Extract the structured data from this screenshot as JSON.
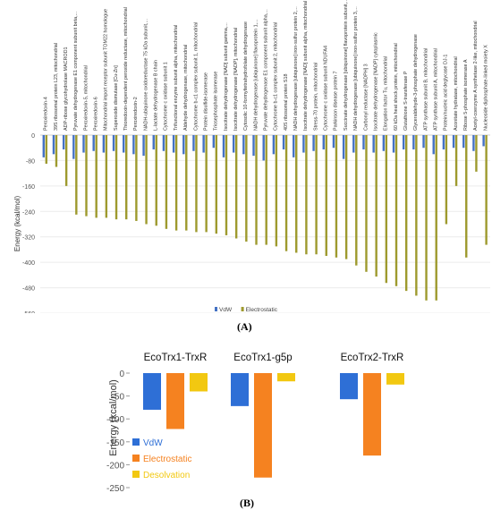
{
  "chart_data": [
    {
      "type": "bar",
      "panel": "(A)",
      "ylabel": "Energy (kcal/mol)",
      "ylim": [
        -560,
        0
      ],
      "yticks": [
        0,
        -80,
        -160,
        -240,
        -320,
        -400,
        -480,
        -560
      ],
      "legend_position": "bottom-right",
      "categories": [
        "Peroxiredoxin-4",
        "39S ribosomal protein L23, mitochondrial",
        "ADP-ribose glycohydrolase MACROD1",
        "Pyruvate dehydrogenase E1 component subunit beta,...",
        "Peroxiredoxin-5, mitochondrial",
        "Peroxiredoxin-6",
        "Mitochondrial import receptor subunit TOM22 homologue",
        "Superoxide dismutase [Cu-Zn]",
        "Thioredoxin-dependent peroxide reductase, mitochondrial",
        "Peroxiredoxin-2",
        "NADH-ubiquinone oxidoreductase 75 kDa subunit,...",
        "L-lactate dehydrogenase B chain",
        "Cytochrome c oxidase subunit 1",
        "Trifunctional enzyme subunit alpha, mitochondrial",
        "Aldehyde dehydrogenase, mitochondrial",
        "Cytochrome b-c1 complex subunit 1, mitochondrial",
        "Protein disulfide-isomerase",
        "Triosephosphate isomerase",
        "Isocitrate dehydrogenase [NAD] subunit gamma,...",
        "Isocitrate dehydrogenase [NADP], mitochondrial",
        "Cytosolic 10-formyltetrahydrofolate dehydrogenase",
        "NADH dehydrogenase [ubiquinone] flavoprotein 1,...",
        "Pyruvate dehydrogenase E1 component subunit alpha,...",
        "Cytochrome b-c1 complex subunit 2, mitochondrial",
        "40S ribosomal protein S18",
        "NADH dehydrogenase [ubiquinone] iron-sulfur protein 2,...",
        "Isocitrate dehydrogenase [NAD] subunit alpha, mitochondrial",
        "Stress-70 protein, mitochondrial",
        "Cytochrome c oxidase subunit NDUFA4",
        "Parkinson disease protein 7",
        "Succinate dehydrogenase [ubiquinone] flavoprotein subunit,...",
        "NADH dehydrogenase [ubiquinone] iron-sulfur protein 3,...",
        "Carbonyl reductase [NADPH] 3",
        "Isocitrate dehydrogenase [NADP] cytoplasmic",
        "Elongation factor Tu, mitochondrial",
        "60 kDa heat shock protein, mitochondrial",
        "Glutathione S-transferase P",
        "Glyceraldehyde-3-phosphate dehydrogenase",
        "ATP synthase subunit B, mitochondrial",
        "ATP synthase subunit A, mitochondrial",
        "Protein/nucleic acid deglycase DJ-1",
        "Aconitate hydratase, mitochondrial",
        "Ribose 5-phosphate isomerase A",
        "Acetyl-coenzyme A synthetase 2-like, mitochondrial",
        "Nucleoside diphosphate-linked moiety X"
      ],
      "series": [
        {
          "name": "VdW",
          "color": "#4472c4",
          "values": [
            -70,
            -60,
            -45,
            -75,
            -55,
            -50,
            -55,
            -50,
            -55,
            -60,
            -65,
            -45,
            -50,
            -55,
            -60,
            -50,
            -55,
            -40,
            -70,
            -55,
            -60,
            -65,
            -80,
            -60,
            -45,
            -70,
            -55,
            -50,
            -45,
            -40,
            -75,
            -55,
            -45,
            -55,
            -50,
            -55,
            -45,
            -45,
            -40,
            -60,
            -45,
            -40,
            -40,
            -50,
            -35
          ]
        },
        {
          "name": "Electrostatic",
          "color": "#9e9a2e",
          "values": [
            -90,
            -100,
            -160,
            -250,
            -255,
            -260,
            -260,
            -265,
            -265,
            -270,
            -280,
            -285,
            -295,
            -300,
            -300,
            -305,
            -305,
            -310,
            -315,
            -325,
            -335,
            -345,
            -345,
            -350,
            -365,
            -370,
            -375,
            -375,
            -380,
            -385,
            -390,
            -410,
            -430,
            -445,
            -465,
            -475,
            -490,
            -505,
            -520,
            -520,
            -280,
            -160,
            -385,
            -115,
            -345
          ]
        }
      ]
    },
    {
      "type": "bar",
      "panel": "(B)",
      "ylabel": "Energy (kcal/mol)",
      "ylim": [
        -250,
        0
      ],
      "yticks": [
        0,
        -50,
        -100,
        -150,
        -200,
        -250
      ],
      "legend_position": "bottom-left",
      "categories": [
        "EcoTrx1-TrxR",
        "EcoTrx1-g5p",
        "EcoTrx2-TrxR"
      ],
      "series": [
        {
          "name": "VdW",
          "color": "#2e6fd6",
          "values": [
            -80,
            -72,
            -57
          ]
        },
        {
          "name": "Electrostatic",
          "color": "#f58220",
          "values": [
            -122,
            -228,
            -180
          ]
        },
        {
          "name": "Desolvation",
          "color": "#f2c811",
          "values": [
            -40,
            -18,
            -25
          ]
        }
      ]
    }
  ]
}
